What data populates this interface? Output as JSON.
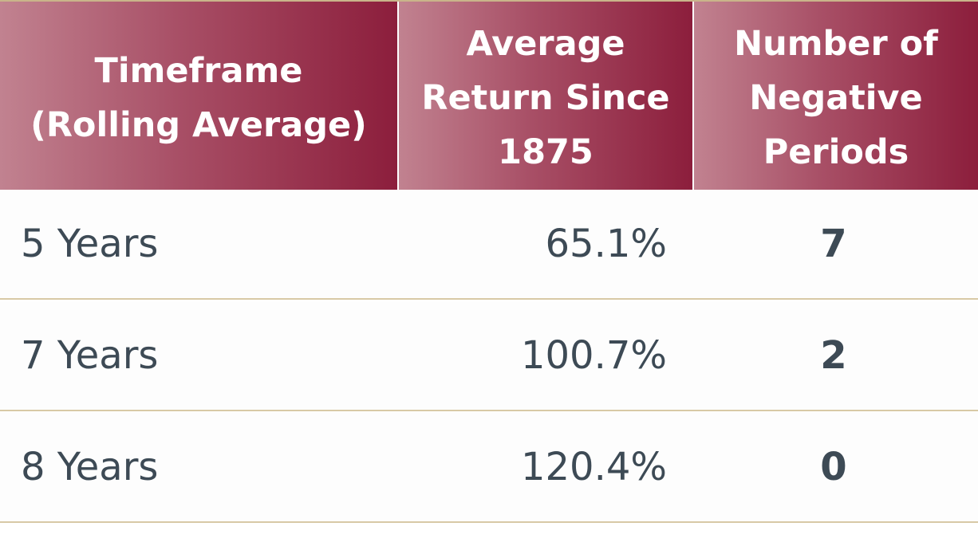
{
  "table": {
    "headers": [
      "Timeframe\n(Rolling Average)",
      "Average\nReturn Since\n1875",
      "Number of\nNegative\nPeriods"
    ],
    "rows": [
      [
        "5 Years",
        "65.1%",
        "7"
      ],
      [
        "7 Years",
        "100.7%",
        "2"
      ],
      [
        "8 Years",
        "120.4%",
        "0"
      ]
    ]
  },
  "colors": {
    "header_gradient_light": "#c18290",
    "header_gradient_dark": "#8c1e3c",
    "header_text": "#ffffff",
    "body_text": "#3d4a55",
    "row_divider": "#d8c9a6"
  }
}
